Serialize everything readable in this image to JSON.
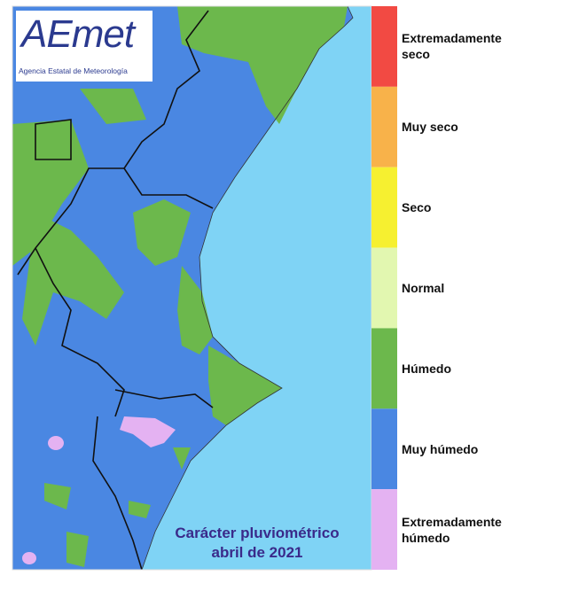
{
  "logo": {
    "wordmark": "AEmet",
    "subtitle": "Agencia Estatal de Meteorología"
  },
  "caption": {
    "line1": "Carácter pluviométrico",
    "line2": "abril de 2021"
  },
  "legend": [
    {
      "label": "Extremadamente seco",
      "color": "#f24a43"
    },
    {
      "label": "Muy seco",
      "color": "#f8b24a"
    },
    {
      "label": "Seco",
      "color": "#f6f030"
    },
    {
      "label": "Normal",
      "color": "#e2f7b0"
    },
    {
      "label": "Húmedo",
      "color": "#6cb84c"
    },
    {
      "label": "Muy húmedo",
      "color": "#4a87e2"
    },
    {
      "label": "Extremadamente húmedo",
      "color": "#e4b2f2"
    }
  ]
}
